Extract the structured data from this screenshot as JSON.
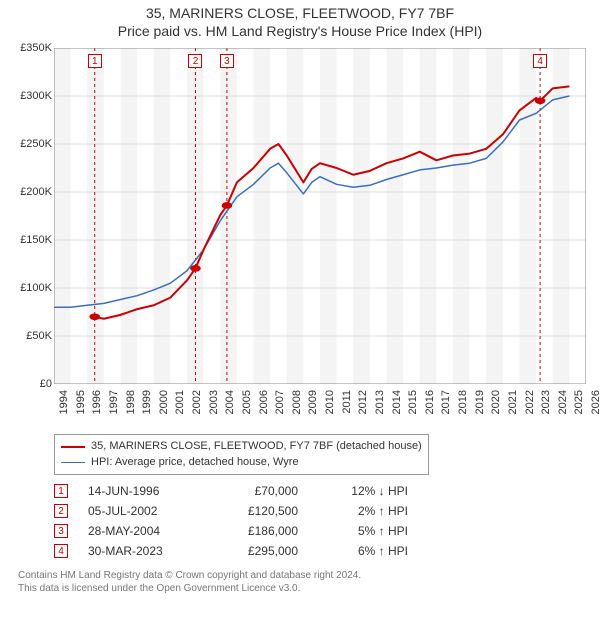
{
  "title": {
    "line1": "35, MARINERS CLOSE, FLEETWOOD, FY7 7BF",
    "line2": "Price paid vs. HM Land Registry's House Price Index (HPI)",
    "fontsize": 14,
    "color": "#333333"
  },
  "chart": {
    "type": "line",
    "background_color": "#ffffff",
    "plot_bg_odd": "#ffffff",
    "plot_bg_even": "#f4f4f4",
    "grid_color": "#dddddd",
    "border_color": "#888888",
    "xlim": [
      1994,
      2026
    ],
    "ylim": [
      0,
      350000
    ],
    "yticks": [
      0,
      50000,
      100000,
      150000,
      200000,
      250000,
      300000,
      350000
    ],
    "ytick_labels": [
      "£0",
      "£50K",
      "£100K",
      "£150K",
      "£200K",
      "£250K",
      "£300K",
      "£350K"
    ],
    "xticks": [
      1994,
      1995,
      1996,
      1997,
      1998,
      1999,
      2000,
      2001,
      2002,
      2003,
      2004,
      2005,
      2006,
      2007,
      2008,
      2009,
      2010,
      2011,
      2012,
      2013,
      2014,
      2015,
      2016,
      2017,
      2018,
      2019,
      2020,
      2021,
      2022,
      2023,
      2024,
      2025,
      2026
    ],
    "label_fontsize": 11,
    "vline_color": "#cc0000",
    "vline_dash": "3,3",
    "vline_width": 1,
    "vlines_x": [
      1996.45,
      2002.51,
      2004.4,
      2023.24
    ]
  },
  "series_subject": {
    "label": "35, MARINERS CLOSE, FLEETWOOD, FY7 7BF (detached house)",
    "color": "#cc0000",
    "width": 2,
    "x": [
      1996.45,
      1997,
      1998,
      1999,
      2000,
      2001,
      2002,
      2002.51,
      2003,
      2004,
      2004.4,
      2005,
      2006,
      2007,
      2007.5,
      2008,
      2009,
      2009.5,
      2010,
      2011,
      2012,
      2013,
      2014,
      2015,
      2016,
      2017,
      2018,
      2019,
      2020,
      2021,
      2022,
      2023,
      2023.24,
      2024,
      2025
    ],
    "y": [
      70000,
      68000,
      72000,
      78000,
      82000,
      90000,
      108000,
      120500,
      140000,
      176000,
      186000,
      210000,
      225000,
      245000,
      250000,
      238000,
      210000,
      224000,
      230000,
      225000,
      218000,
      222000,
      230000,
      235000,
      242000,
      233000,
      238000,
      240000,
      245000,
      260000,
      285000,
      298000,
      295000,
      308000,
      310000
    ]
  },
  "series_hpi": {
    "label": "HPI: Average price, detached house, Wyre",
    "color": "#3a6fbf",
    "width": 1.5,
    "x": [
      1994,
      1995,
      1996,
      1997,
      1998,
      1999,
      2000,
      2001,
      2002,
      2003,
      2004,
      2005,
      2006,
      2007,
      2007.5,
      2008,
      2009,
      2009.5,
      2010,
      2011,
      2012,
      2013,
      2014,
      2015,
      2016,
      2017,
      2018,
      2019,
      2020,
      2021,
      2022,
      2023,
      2024,
      2025
    ],
    "y": [
      80000,
      80000,
      82000,
      84000,
      88000,
      92000,
      98000,
      105000,
      118000,
      140000,
      170000,
      195000,
      208000,
      225000,
      230000,
      220000,
      198000,
      210000,
      216000,
      208000,
      205000,
      207000,
      213000,
      218000,
      223000,
      225000,
      228000,
      230000,
      235000,
      252000,
      275000,
      282000,
      296000,
      300000
    ]
  },
  "markers": {
    "color": "#cc0000",
    "radius": 5,
    "points": [
      {
        "n": "1",
        "x": 1996.45,
        "y": 70000
      },
      {
        "n": "2",
        "x": 2002.51,
        "y": 120500
      },
      {
        "n": "3",
        "x": 2004.4,
        "y": 186000
      },
      {
        "n": "4",
        "x": 2023.24,
        "y": 295000
      }
    ]
  },
  "legend": {
    "border_color": "#999999",
    "fontsize": 11,
    "items": [
      {
        "color": "#cc0000",
        "width": 2,
        "label_key": "series_subject.label"
      },
      {
        "color": "#3a6fbf",
        "width": 1.5,
        "label_key": "series_hpi.label"
      }
    ]
  },
  "events": [
    {
      "n": "1",
      "date": "14-JUN-1996",
      "price": "£70,000",
      "delta": "12% ↓ HPI"
    },
    {
      "n": "2",
      "date": "05-JUL-2002",
      "price": "£120,500",
      "delta": "2% ↑ HPI"
    },
    {
      "n": "3",
      "date": "28-MAY-2004",
      "price": "£186,000",
      "delta": "5% ↑ HPI"
    },
    {
      "n": "4",
      "date": "30-MAR-2023",
      "price": "£295,000",
      "delta": "6% ↑ HPI"
    }
  ],
  "footer": {
    "line1": "Contains HM Land Registry data © Crown copyright and database right 2024.",
    "line2": "This data is licensed under the Open Government Licence v3.0."
  }
}
